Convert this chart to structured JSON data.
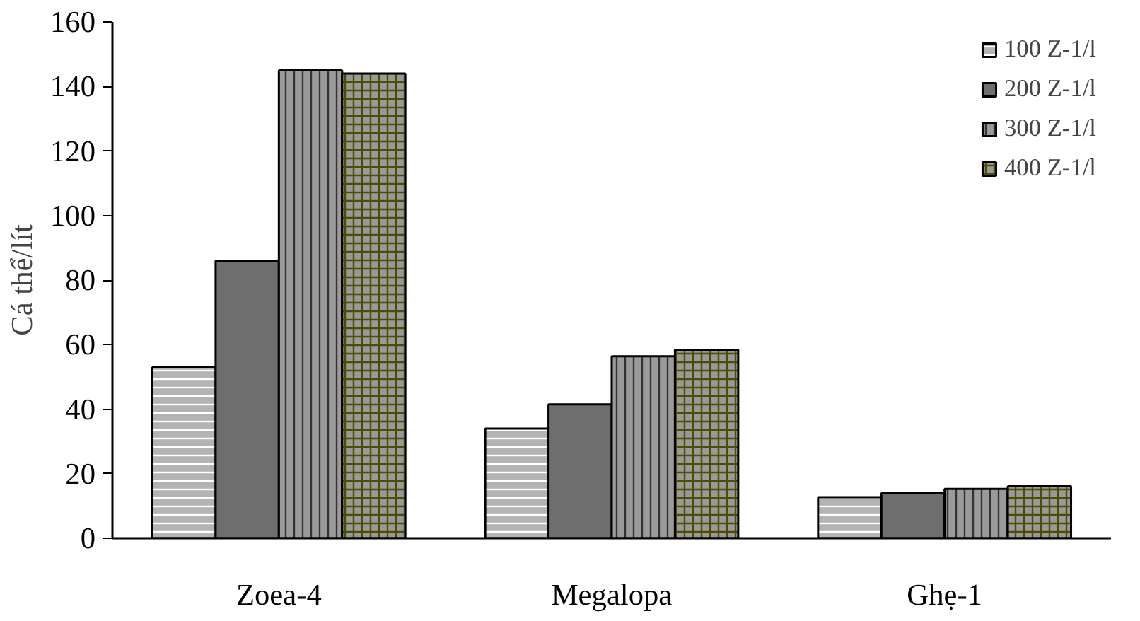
{
  "chart_data": {
    "type": "bar",
    "ylabel": "Cá thể/lít",
    "categories": [
      "Zoea-4",
      "Megalopa",
      "Ghẹ-1"
    ],
    "series": [
      {
        "name": "100 Z-1/l",
        "color": "#b4b4b4",
        "values": [
          53,
          34,
          12.7
        ]
      },
      {
        "name": "200 Z-1/l",
        "color": "#6e6e6e",
        "values": [
          86,
          41.5,
          13.9
        ]
      },
      {
        "name": "300 Z-1/l",
        "color": "#9a9a9a",
        "values": [
          145,
          56.4,
          15.3
        ]
      },
      {
        "name": "400 Z-1/l",
        "color": "#999999",
        "values": [
          144,
          58.4,
          16.1
        ]
      }
    ],
    "ylim": [
      0,
      160
    ],
    "yticks": [
      0,
      20,
      40,
      60,
      80,
      100,
      120,
      140,
      160
    ],
    "grid": false,
    "legend": "top right"
  }
}
